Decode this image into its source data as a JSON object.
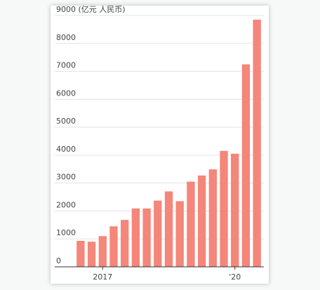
{
  "chart_data": {
    "type": "bar",
    "categories": [
      null,
      null,
      "2017",
      null,
      null,
      null,
      null,
      null,
      null,
      null,
      null,
      null,
      null,
      null,
      "'20",
      null,
      null
    ],
    "values": [
      930,
      900,
      1100,
      1450,
      1680,
      2090,
      2090,
      2370,
      2700,
      2350,
      3050,
      3270,
      3490,
      4150,
      4050,
      7250,
      8850
    ],
    "color": "#f4867a",
    "ylim": [
      0,
      9000
    ],
    "yticks": [
      0,
      1000,
      2000,
      3000,
      4000,
      5000,
      6000,
      7000,
      8000,
      {
        "value": 9000,
        "label": "9000 (亿元 人民币)"
      }
    ],
    "grid": true
  }
}
